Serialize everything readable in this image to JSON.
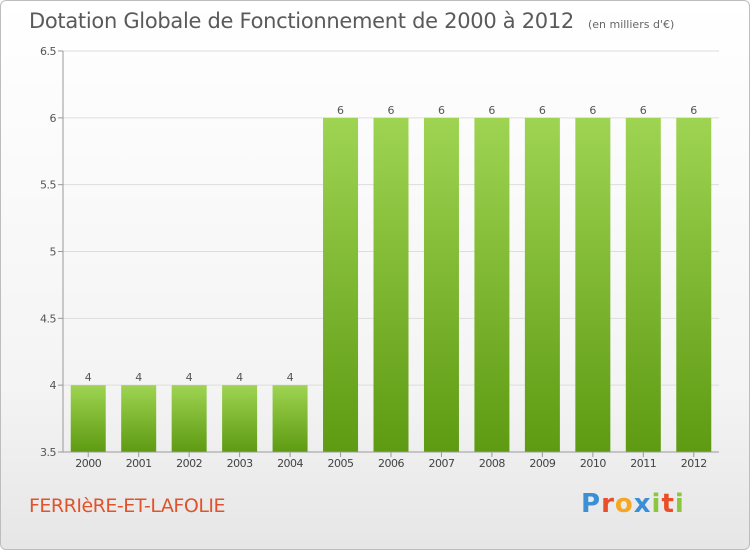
{
  "header": {
    "title": "Dotation Globale de Fonctionnement de 2000 à 2012",
    "unit": "(en milliers d'€)"
  },
  "footer": {
    "commune": "FERRIèRE-ET-LAFOLIE",
    "logo_letters": [
      "P",
      "r",
      "o",
      "x",
      "i",
      "t",
      "i"
    ],
    "logo_colors": [
      "#3a8fd6",
      "#e94e2b",
      "#f5a623",
      "#3a8fd6",
      "#8cc63f",
      "#e94e2b",
      "#8cc63f"
    ]
  },
  "colors": {
    "bar_light": "#9ed452",
    "bar_dark": "#5e9a12",
    "axis": "#999999",
    "grid": "#dddddd"
  },
  "chart_data": {
    "type": "bar",
    "title": "Dotation Globale de Fonctionnement de 2000 à 2012",
    "xlabel": "",
    "ylabel": "",
    "categories": [
      "2000",
      "2001",
      "2002",
      "2003",
      "2004",
      "2005",
      "2006",
      "2007",
      "2008",
      "2009",
      "2010",
      "2011",
      "2012"
    ],
    "values": [
      4,
      4,
      4,
      4,
      4,
      6,
      6,
      6,
      6,
      6,
      6,
      6,
      6
    ],
    "value_labels": [
      "4",
      "4",
      "4",
      "4",
      "4",
      "6",
      "6",
      "6",
      "6",
      "6",
      "6",
      "6",
      "6"
    ],
    "yticks": [
      3.5,
      4,
      4.5,
      5,
      5.5,
      6,
      6.5
    ],
    "ytick_labels": [
      "3.5",
      "4",
      "4.5",
      "5",
      "5.5",
      "6",
      "6.5"
    ],
    "ylim": [
      3.5,
      6.5
    ],
    "grid": true
  }
}
